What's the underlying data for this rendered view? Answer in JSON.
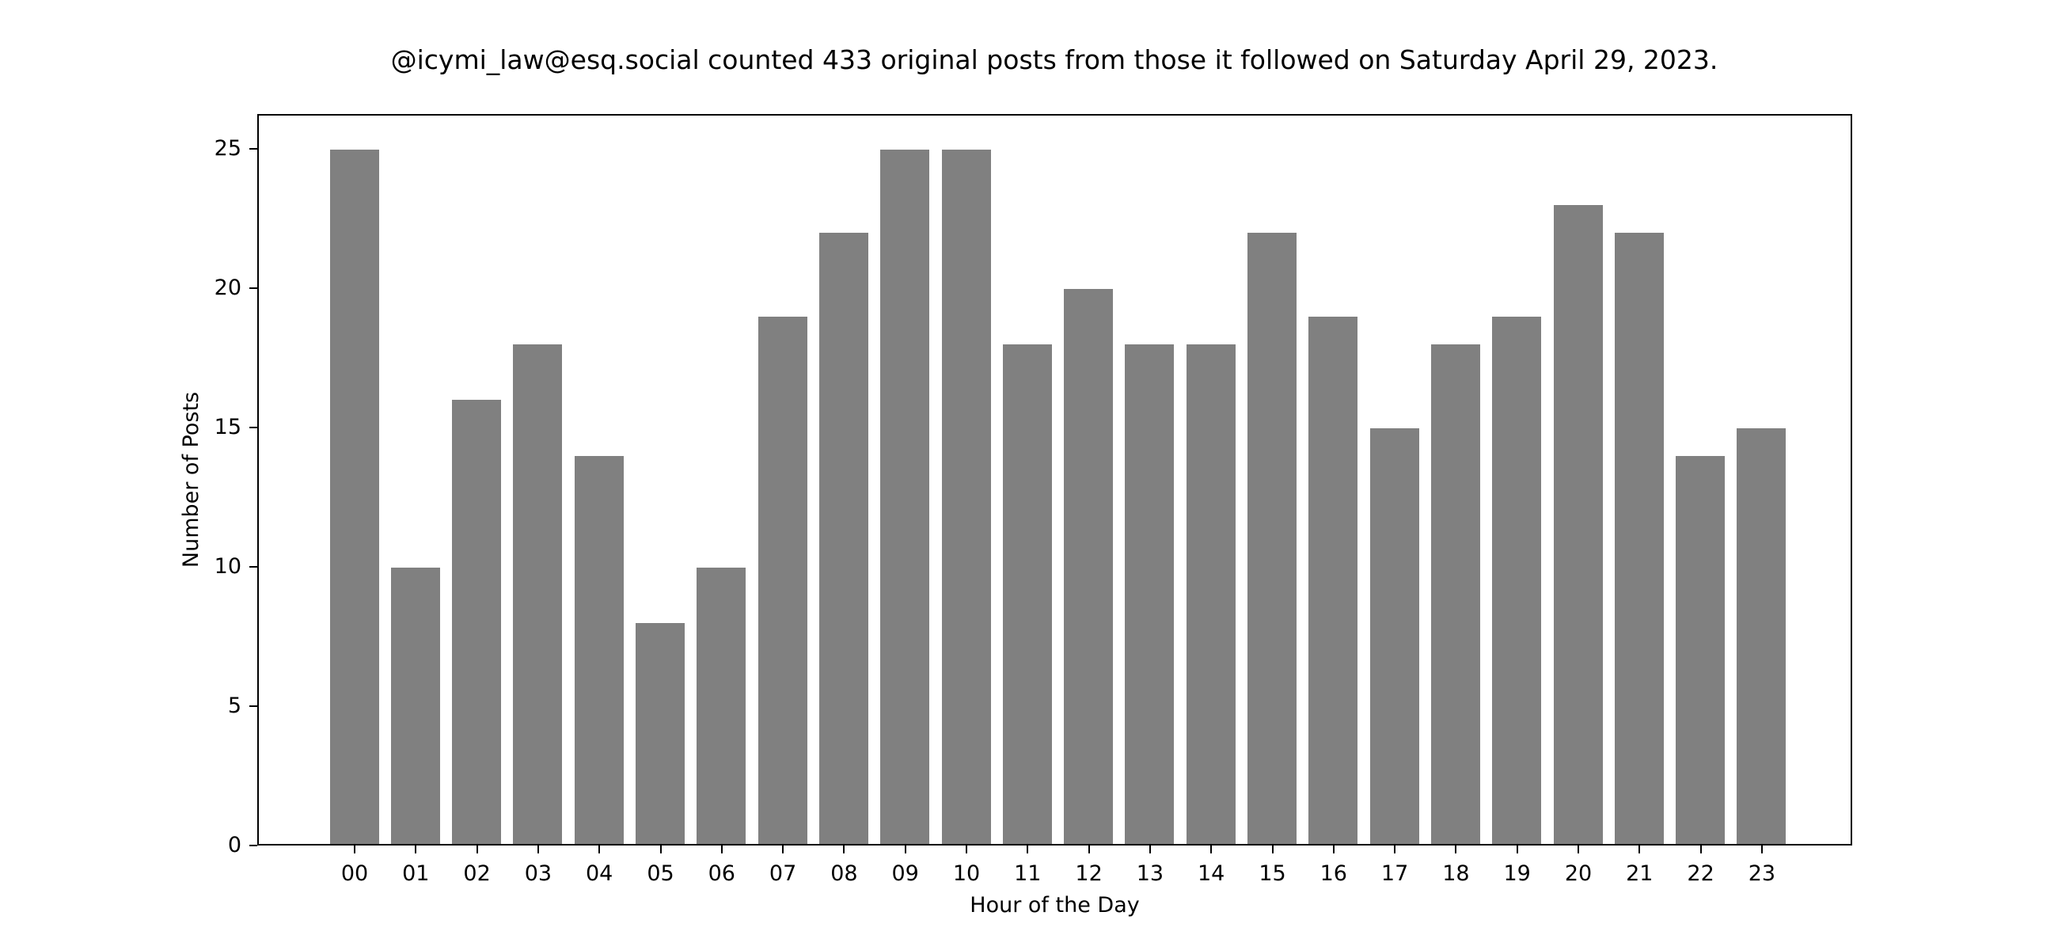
{
  "chart_data": {
    "type": "bar",
    "title": "@icymi_law@esq.social counted 433 original posts from those it followed on Saturday April 29, 2023.",
    "xlabel": "Hour of the Day",
    "ylabel": "Number of Posts",
    "categories": [
      "00",
      "01",
      "02",
      "03",
      "04",
      "05",
      "06",
      "07",
      "08",
      "09",
      "10",
      "11",
      "12",
      "13",
      "14",
      "15",
      "16",
      "17",
      "18",
      "19",
      "20",
      "21",
      "22",
      "23"
    ],
    "values": [
      25,
      10,
      16,
      18,
      14,
      8,
      10,
      19,
      22,
      25,
      25,
      18,
      20,
      18,
      18,
      22,
      19,
      15,
      18,
      19,
      23,
      22,
      14,
      15
    ],
    "yticks": [
      0,
      5,
      10,
      15,
      20,
      25
    ],
    "ylim": [
      0,
      26.25
    ],
    "grid": false,
    "legend": null,
    "bar_color": "#808080"
  }
}
